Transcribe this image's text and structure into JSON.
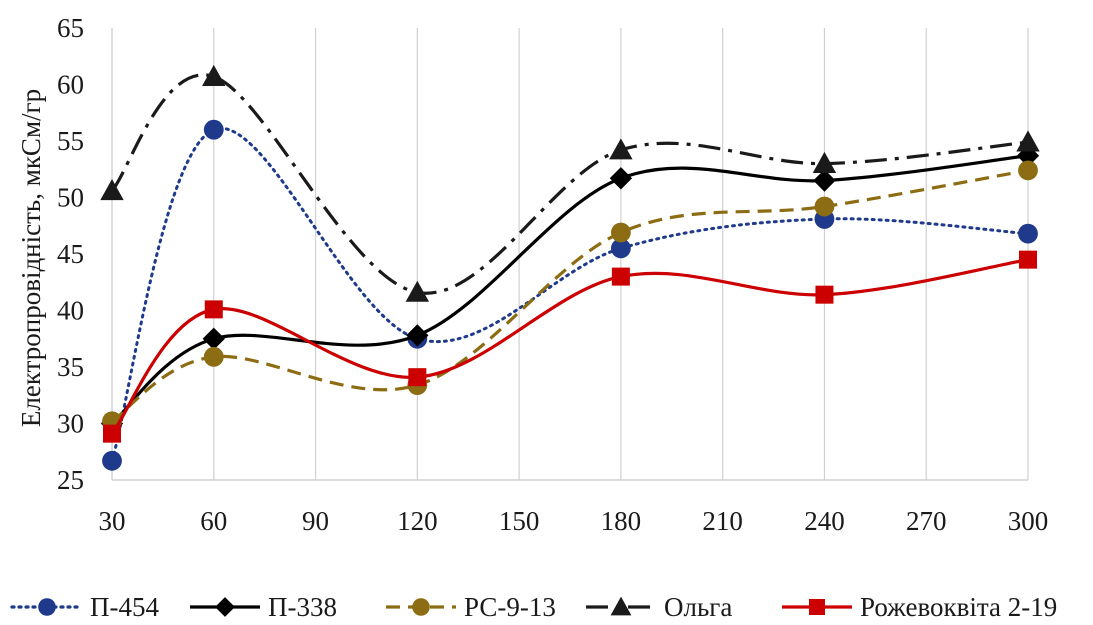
{
  "chart_data": {
    "type": "line",
    "title": "",
    "xlabel": "",
    "ylabel": "Електропровідність, мкСм/гр",
    "x_ticks": [
      30,
      60,
      90,
      120,
      150,
      180,
      210,
      240,
      270,
      300
    ],
    "y_ticks": [
      25,
      30,
      35,
      40,
      45,
      50,
      55,
      60,
      65
    ],
    "xlim": [
      30,
      300
    ],
    "ylim": [
      25,
      65
    ],
    "grid": "vertical",
    "legend": "bottom",
    "x": [
      30,
      60,
      120,
      180,
      240,
      300
    ],
    "series": [
      {
        "name": "П-454",
        "values": [
          26.7,
          56.0,
          37.5,
          45.5,
          48.1,
          46.8
        ],
        "color": "#1f3a8a",
        "dash": "dotted",
        "marker": "circle"
      },
      {
        "name": "П-338",
        "values": [
          30.0,
          37.5,
          37.8,
          51.7,
          51.5,
          53.7
        ],
        "color": "#000000",
        "dash": "solid",
        "marker": "diamond"
      },
      {
        "name": "РС-9-13",
        "values": [
          30.2,
          35.9,
          33.4,
          46.9,
          49.2,
          52.4
        ],
        "color": "#8c6d14",
        "dash": "dashed",
        "marker": "circle"
      },
      {
        "name": "Ольга",
        "values": [
          50.6,
          60.7,
          41.6,
          54.2,
          53.0,
          54.9
        ],
        "color": "#1a1a1a",
        "dash": "dashdot",
        "marker": "triangle"
      },
      {
        "name": "Рожевоквіта 2-19",
        "values": [
          29.1,
          40.1,
          34.1,
          43.0,
          41.4,
          44.5
        ],
        "color": "#cc0000",
        "dash": "solid",
        "marker": "square"
      }
    ]
  }
}
